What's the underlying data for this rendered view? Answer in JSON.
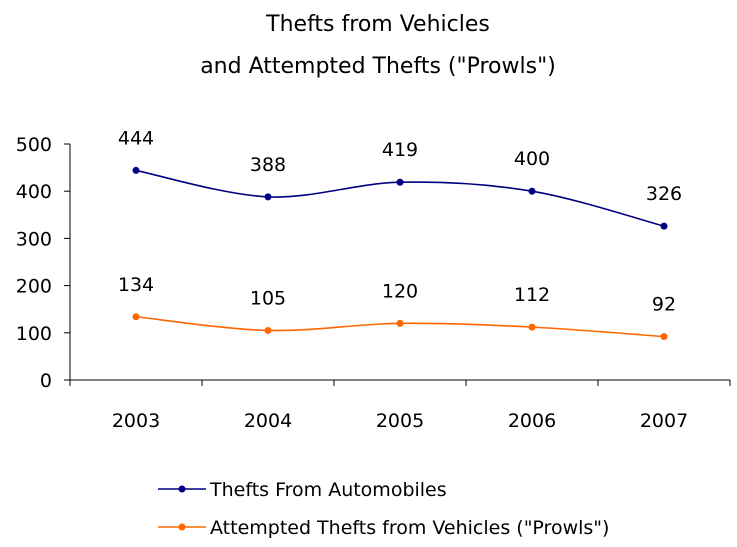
{
  "chart_data": {
    "type": "line",
    "title": [
      "Thefts from Vehicles",
      "and Attempted Thefts (\"Prowls\")"
    ],
    "categories": [
      "2003",
      "2004",
      "2005",
      "2006",
      "2007"
    ],
    "ylim": [
      0,
      500
    ],
    "yticks": [
      0,
      100,
      200,
      300,
      400,
      500
    ],
    "grid": false,
    "legend_position": "bottom",
    "series": [
      {
        "name": "Thefts From Automobiles",
        "color": "#000080",
        "values": [
          444,
          388,
          419,
          400,
          326
        ]
      },
      {
        "name": "Attempted Thefts from Vehicles (\"Prowls\")",
        "color": "#FF6600",
        "values": [
          134,
          105,
          120,
          112,
          92
        ]
      }
    ]
  }
}
